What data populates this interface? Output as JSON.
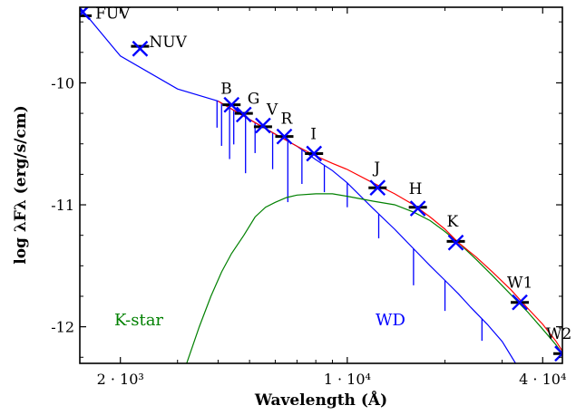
{
  "chart_data": {
    "type": "scatter",
    "xlabel": "Wavelength (Å)",
    "ylabel": "log λFλ (erg/s/cm)",
    "x_scale": "log",
    "xlim": [
      1500,
      46000
    ],
    "ylim": [
      -12.3,
      -9.38
    ],
    "x_ticks": [
      {
        "value": 2000,
        "label": "2 · 10³"
      },
      {
        "value": 10000,
        "label": "1 · 10⁴"
      },
      {
        "value": 40000,
        "label": "4 · 10⁴"
      }
    ],
    "y_ticks": [
      {
        "value": -10,
        "label": "-10"
      },
      {
        "value": -11,
        "label": "-11"
      },
      {
        "value": -12,
        "label": "-12"
      }
    ],
    "bands": [
      {
        "name": "FUV",
        "wavelength": 1530,
        "observed": -9.42,
        "model": -9.45
      },
      {
        "name": "NUV",
        "wavelength": 2300,
        "observed": -9.72,
        "model": -9.7
      },
      {
        "name": "B",
        "wavelength": 4400,
        "observed": -10.18,
        "model": -10.18
      },
      {
        "name": "G",
        "wavelength": 4800,
        "observed": -10.26,
        "model": -10.25
      },
      {
        "name": "V",
        "wavelength": 5500,
        "observed": -10.35,
        "model": -10.36
      },
      {
        "name": "R",
        "wavelength": 6400,
        "observed": -10.44,
        "model": -10.44
      },
      {
        "name": "I",
        "wavelength": 7900,
        "observed": -10.58,
        "model": -10.58
      },
      {
        "name": "J",
        "wavelength": 12400,
        "observed": -10.86,
        "model": -10.86
      },
      {
        "name": "H",
        "wavelength": 16500,
        "observed": -11.03,
        "model": -11.02
      },
      {
        "name": "K",
        "wavelength": 21600,
        "observed": -11.31,
        "model": -11.3
      },
      {
        "name": "W1",
        "wavelength": 34000,
        "observed": -11.8,
        "model": -11.8
      },
      {
        "name": "W2",
        "wavelength": 46000,
        "observed": -12.22,
        "model": -12.22
      }
    ],
    "series": [
      {
        "name": "WD",
        "color": "#0000ff",
        "points": [
          [
            1500,
            -9.38
          ],
          [
            2000,
            -9.78
          ],
          [
            3000,
            -10.05
          ],
          [
            4000,
            -10.15
          ],
          [
            5000,
            -10.3
          ],
          [
            6000,
            -10.42
          ],
          [
            7000,
            -10.52
          ],
          [
            8000,
            -10.63
          ],
          [
            9000,
            -10.72
          ],
          [
            10000,
            -10.82
          ],
          [
            12000,
            -11.03
          ],
          [
            14000,
            -11.2
          ],
          [
            16000,
            -11.36
          ],
          [
            18000,
            -11.5
          ],
          [
            20000,
            -11.62
          ],
          [
            22000,
            -11.73
          ],
          [
            24000,
            -11.84
          ],
          [
            27000,
            -11.98
          ],
          [
            30000,
            -12.12
          ],
          [
            33000,
            -12.3
          ]
        ]
      },
      {
        "name": "K-star",
        "color": "#008000",
        "points": [
          [
            3200,
            -12.3
          ],
          [
            3500,
            -12.0
          ],
          [
            3800,
            -11.75
          ],
          [
            4100,
            -11.55
          ],
          [
            4400,
            -11.4
          ],
          [
            4800,
            -11.25
          ],
          [
            5200,
            -11.1
          ],
          [
            5600,
            -11.02
          ],
          [
            6000,
            -10.98
          ],
          [
            6500,
            -10.94
          ],
          [
            7000,
            -10.92
          ],
          [
            8000,
            -10.91
          ],
          [
            9000,
            -10.91
          ],
          [
            10000,
            -10.93
          ],
          [
            12000,
            -10.97
          ],
          [
            14000,
            -11.0
          ],
          [
            16000,
            -11.06
          ],
          [
            18000,
            -11.13
          ],
          [
            20000,
            -11.22
          ],
          [
            22000,
            -11.31
          ],
          [
            25000,
            -11.45
          ],
          [
            28000,
            -11.58
          ],
          [
            32000,
            -11.74
          ],
          [
            36000,
            -11.88
          ],
          [
            40000,
            -12.02
          ],
          [
            44000,
            -12.15
          ],
          [
            46000,
            -12.22
          ]
        ]
      },
      {
        "name": "",
        "color": "#ff0000",
        "points": [
          [
            4000,
            -10.15
          ],
          [
            5000,
            -10.3
          ],
          [
            6000,
            -10.42
          ],
          [
            7000,
            -10.52
          ],
          [
            8000,
            -10.6
          ],
          [
            9000,
            -10.66
          ],
          [
            10000,
            -10.71
          ],
          [
            12000,
            -10.82
          ],
          [
            14000,
            -10.91
          ],
          [
            16000,
            -11.0
          ],
          [
            18000,
            -11.1
          ],
          [
            20000,
            -11.2
          ],
          [
            22000,
            -11.31
          ],
          [
            25000,
            -11.43
          ],
          [
            28000,
            -11.55
          ],
          [
            32000,
            -11.7
          ],
          [
            36000,
            -11.85
          ],
          [
            40000,
            -11.98
          ],
          [
            44000,
            -12.12
          ],
          [
            46000,
            -12.2
          ]
        ]
      }
    ],
    "absorption_lines": [
      {
        "wavelength": 3970,
        "depth": 0.22
      },
      {
        "wavelength": 4100,
        "depth": 0.35
      },
      {
        "wavelength": 4340,
        "depth": 0.42
      },
      {
        "wavelength": 4470,
        "depth": 0.28
      },
      {
        "wavelength": 4860,
        "depth": 0.46
      },
      {
        "wavelength": 5200,
        "depth": 0.25
      },
      {
        "wavelength": 5890,
        "depth": 0.3
      },
      {
        "wavelength": 6560,
        "depth": 0.5
      },
      {
        "wavelength": 7250,
        "depth": 0.28
      },
      {
        "wavelength": 8500,
        "depth": 0.22
      },
      {
        "wavelength": 10000,
        "depth": 0.2
      },
      {
        "wavelength": 12500,
        "depth": 0.2
      },
      {
        "wavelength": 16000,
        "depth": 0.3
      },
      {
        "wavelength": 20000,
        "depth": 0.25
      },
      {
        "wavelength": 26000,
        "depth": 0.18
      }
    ],
    "series_labels": [
      {
        "text": "K-star",
        "color": "#008000"
      },
      {
        "text": "WD",
        "color": "#0000ff"
      }
    ],
    "colors": {
      "observed_marker": "#0000ff",
      "model_marker": "#000000",
      "axis": "#000000"
    }
  }
}
